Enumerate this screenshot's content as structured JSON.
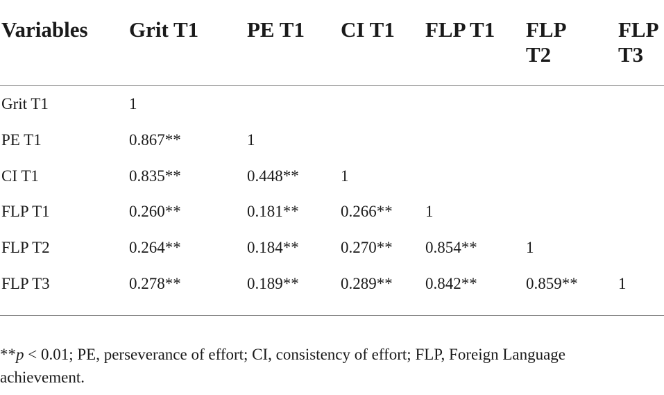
{
  "table": {
    "headers": [
      "Variables",
      "Grit T1",
      "PE T1",
      "CI T1",
      "FLP T1",
      "FLP T2",
      "FLP T3"
    ],
    "header_lines": [
      [
        "Variables"
      ],
      [
        "Grit T1"
      ],
      [
        "PE T1"
      ],
      [
        "CI T1"
      ],
      [
        "FLP T1"
      ],
      [
        "FLP",
        "T2"
      ],
      [
        "FLP",
        "T3"
      ]
    ],
    "rows": [
      [
        "Grit T1",
        "1",
        "",
        "",
        "",
        "",
        ""
      ],
      [
        "PE T1",
        "0.867**",
        "1",
        "",
        "",
        "",
        ""
      ],
      [
        "CI T1",
        "0.835**",
        "0.448**",
        "1",
        "",
        "",
        ""
      ],
      [
        "FLP T1",
        "0.260**",
        "0.181**",
        "0.266**",
        "1",
        "",
        ""
      ],
      [
        "FLP T2",
        "0.264**",
        "0.184**",
        "0.270**",
        "0.854**",
        "1",
        ""
      ],
      [
        "FLP T3",
        "0.278**",
        "0.189**",
        "0.289**",
        "0.842**",
        "0.859**",
        "1"
      ]
    ]
  },
  "footnote": {
    "prefix": "**",
    "p_symbol": "p",
    "text": " < 0.01; PE, perseverance of effort; CI, consistency of effort; FLP, Foreign Language achievement."
  }
}
